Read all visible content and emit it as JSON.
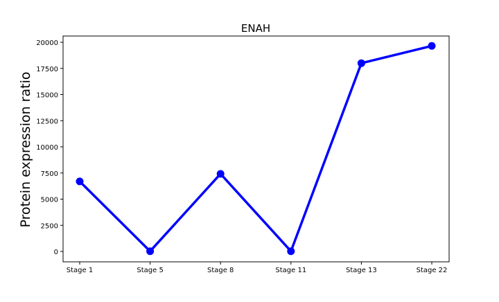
{
  "chart_data": {
    "type": "line",
    "title": "ENAH",
    "xlabel": "",
    "ylabel": "Protein expression ratio",
    "categories": [
      "Stage 1",
      "Stage 5",
      "Stage 8",
      "Stage 11",
      "Stage 13",
      "Stage 22"
    ],
    "series": [
      {
        "values": [
          6700,
          20,
          7420,
          20,
          18000,
          19650
        ],
        "color": "#0000ff"
      }
    ],
    "ylim": [
      -1000,
      20600
    ],
    "yticks": [
      0,
      2500,
      5000,
      7500,
      10000,
      12500,
      15000,
      17500,
      20000
    ],
    "grid": false,
    "legend": "none"
  }
}
